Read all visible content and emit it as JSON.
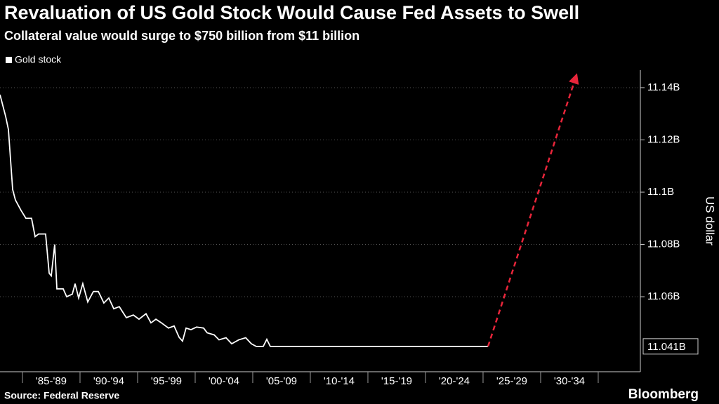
{
  "chart_data": {
    "type": "line",
    "title": "Revaluation of US Gold Stock Would Cause Fed Assets to Swell",
    "subtitle": "Collateral value would surge to $750 billion from $11 billion",
    "y_axis_label": "US dollar",
    "source": "Source: Federal Reserve",
    "brand": "Bloomberg",
    "background": "#000000",
    "grid": true,
    "legend": "top-left",
    "xlim": [
      1983.05,
      2038.66
    ],
    "xticks": [
      1985,
      1990,
      1995,
      2000,
      2005,
      2010,
      2015,
      2020,
      2025,
      2030,
      2035
    ],
    "categories": [
      "'85-'89",
      "'90-'94",
      "'95-'99",
      "'00-'04",
      "'05-'09",
      "'10-'14",
      "'15-'19",
      "'20-'24",
      "'25-'29",
      "'30-'34"
    ],
    "ylim": [
      11.0313,
      11.1467
    ],
    "yticks": [
      {
        "value": 11.06,
        "label": "11.06B"
      },
      {
        "value": 11.08,
        "label": "11.08B"
      },
      {
        "value": 11.1,
        "label": "11.1B"
      },
      {
        "value": 11.12,
        "label": "11.12B"
      },
      {
        "value": 11.14,
        "label": "11.14B"
      }
    ],
    "series": [
      {
        "name": "Gold stock",
        "color": "#ffffff",
        "x": [
          1983.05,
          1983.54,
          1983.78,
          1984.15,
          1984.39,
          1984.88,
          1985.3,
          1985.79,
          1986.1,
          1986.4,
          1987.01,
          1987.32,
          1987.5,
          1987.8,
          1987.99,
          1988.54,
          1988.84,
          1989.33,
          1989.57,
          1989.88,
          1990.24,
          1990.67,
          1991.16,
          1991.59,
          1992.07,
          1992.5,
          1992.93,
          1993.41,
          1994.02,
          1994.63,
          1995.12,
          1995.73,
          1996.16,
          1996.59,
          1997.07,
          1997.68,
          1998.17,
          1998.6,
          1998.9,
          1999.21,
          1999.63,
          2000.12,
          2000.73,
          2001.04,
          2001.65,
          2002.07,
          2002.68,
          2003.17,
          2003.78,
          2004.39,
          2004.88,
          2005.3,
          2005.91,
          2006.22,
          2006.52,
          2025.43
        ],
        "values": [
          11.1373,
          11.129,
          11.124,
          11.101,
          11.097,
          11.093,
          11.09,
          11.09,
          11.083,
          11.084,
          11.084,
          11.069,
          11.068,
          11.08,
          11.063,
          11.063,
          11.06,
          11.061,
          11.065,
          11.0595,
          11.065,
          11.058,
          11.062,
          11.062,
          11.0576,
          11.0595,
          11.0554,
          11.0562,
          11.052,
          11.053,
          11.0514,
          11.0535,
          11.05,
          11.0514,
          11.05,
          11.048,
          11.0488,
          11.0445,
          11.043,
          11.048,
          11.0474,
          11.0484,
          11.048,
          11.0462,
          11.0454,
          11.0435,
          11.0443,
          11.042,
          11.0435,
          11.0443,
          11.042,
          11.041,
          11.041,
          11.0437,
          11.041,
          11.041
        ],
        "value_labels": [
          null,
          null,
          null,
          null,
          null,
          null,
          null,
          null,
          null,
          null,
          null,
          null,
          null,
          null,
          null,
          null,
          null,
          null,
          null,
          null,
          null,
          null,
          null,
          null,
          null,
          null,
          null,
          null,
          null,
          null,
          null,
          null,
          null,
          null,
          null,
          null,
          null,
          null,
          null,
          null,
          null,
          null,
          null,
          null,
          null,
          null,
          null,
          null,
          null,
          null,
          null,
          null,
          null,
          null,
          null,
          "11.041B"
        ]
      },
      {
        "color": "#e8253a",
        "dashed": true,
        "x": [
          2025.43,
          2033.05
        ],
        "values": [
          11.041,
          11.144
        ]
      }
    ]
  }
}
